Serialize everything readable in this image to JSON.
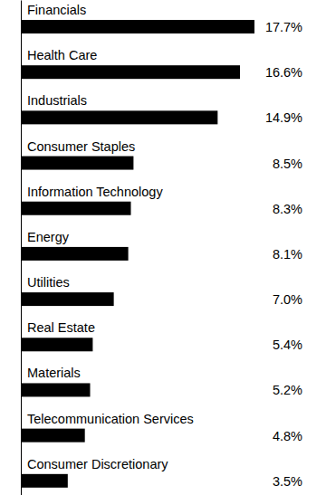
{
  "chart_data": {
    "type": "bar",
    "orientation": "horizontal",
    "categories": [
      "Financials",
      "Health Care",
      "Industrials",
      "Consumer Staples",
      "Information Technology",
      "Energy",
      "Utilities",
      "Real Estate",
      "Materials",
      "Telecommunication Services",
      "Consumer Discretionary"
    ],
    "values": [
      17.7,
      16.6,
      14.9,
      8.5,
      8.3,
      8.1,
      7.0,
      5.4,
      5.2,
      4.8,
      3.5
    ],
    "value_labels": [
      "17.7%",
      "16.6%",
      "14.9%",
      "8.5%",
      "8.3%",
      "8.1%",
      "7.0%",
      "5.4%",
      "5.2%",
      "4.8%",
      "3.5%"
    ],
    "color": "#000000",
    "xlim": [
      0,
      17.7
    ],
    "data_labels": true,
    "tick_labels": "y",
    "grid": false
  }
}
